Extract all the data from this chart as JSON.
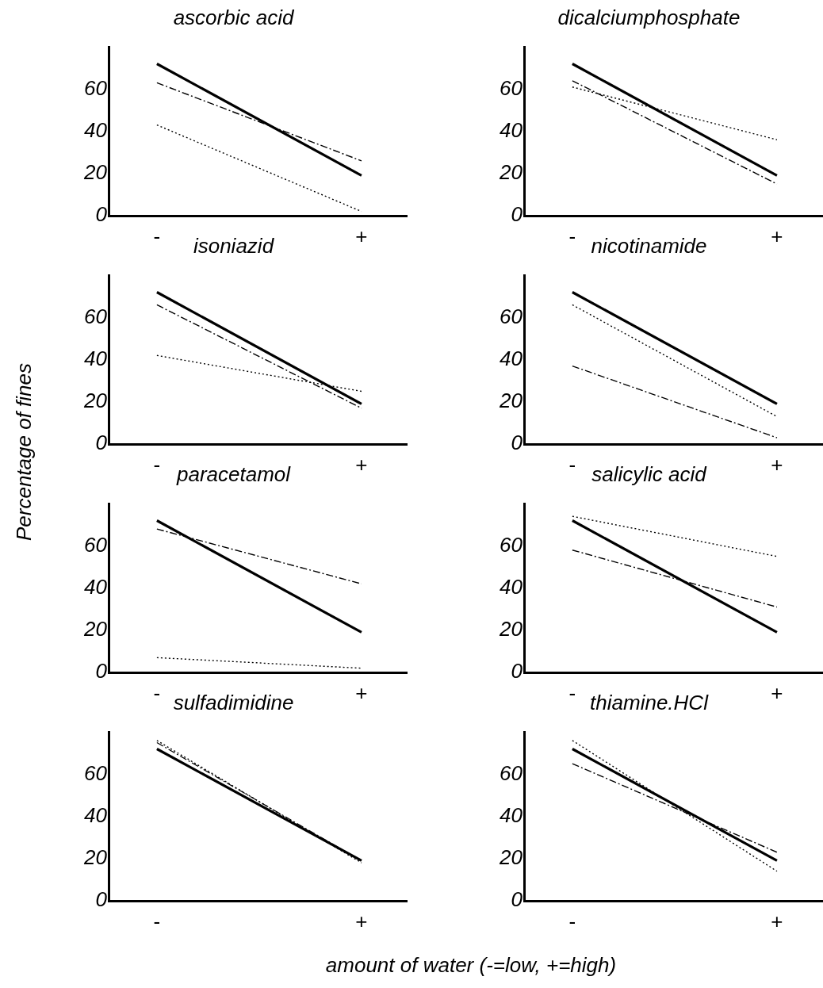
{
  "chart_data": [
    {
      "type": "line",
      "title": "ascorbic acid",
      "categories": [
        "-",
        "+"
      ],
      "ylim": [
        0,
        80
      ],
      "yticks": [
        0,
        20,
        40,
        60
      ],
      "series": [
        {
          "color": "#000000",
          "line_style": "solid",
          "values": [
            72,
            19
          ]
        },
        {
          "color": "#000000",
          "line_style": "dashed",
          "values": [
            63,
            26
          ]
        },
        {
          "color": "#000000",
          "line_style": "dotted",
          "values": [
            43,
            2
          ]
        }
      ]
    },
    {
      "type": "line",
      "title": "dicalciumphosphate",
      "categories": [
        "-",
        "+"
      ],
      "ylim": [
        0,
        80
      ],
      "yticks": [
        0,
        20,
        40,
        60
      ],
      "series": [
        {
          "color": "#000000",
          "line_style": "solid",
          "values": [
            72,
            19
          ]
        },
        {
          "color": "#000000",
          "line_style": "dashed",
          "values": [
            64,
            15
          ]
        },
        {
          "color": "#000000",
          "line_style": "dotted",
          "values": [
            61,
            36
          ]
        }
      ]
    },
    {
      "type": "line",
      "title": "isoniazid",
      "ylabel": "Percentage of fines",
      "categories": [
        "-",
        "+"
      ],
      "ylim": [
        0,
        80
      ],
      "yticks": [
        0,
        20,
        40,
        60
      ],
      "series": [
        {
          "color": "#000000",
          "line_style": "solid",
          "values": [
            72,
            19
          ]
        },
        {
          "color": "#000000",
          "line_style": "dashed",
          "values": [
            66,
            17
          ]
        },
        {
          "color": "#000000",
          "line_style": "dotted",
          "values": [
            42,
            25
          ]
        }
      ]
    },
    {
      "type": "line",
      "title": "nicotinamide",
      "categories": [
        "-",
        "+"
      ],
      "ylim": [
        0,
        80
      ],
      "yticks": [
        0,
        20,
        40,
        60
      ],
      "series": [
        {
          "color": "#000000",
          "line_style": "solid",
          "values": [
            72,
            19
          ]
        },
        {
          "color": "#000000",
          "line_style": "dotted",
          "values": [
            66,
            13
          ]
        },
        {
          "color": "#000000",
          "line_style": "dashed",
          "values": [
            37,
            3
          ]
        }
      ]
    },
    {
      "type": "line",
      "title": "paracetamol",
      "categories": [
        "-",
        "+"
      ],
      "ylim": [
        0,
        80
      ],
      "yticks": [
        0,
        20,
        40,
        60
      ],
      "series": [
        {
          "color": "#000000",
          "line_style": "solid",
          "values": [
            72,
            19
          ]
        },
        {
          "color": "#000000",
          "line_style": "dashed",
          "values": [
            68,
            42
          ]
        },
        {
          "color": "#000000",
          "line_style": "dotted",
          "values": [
            7,
            2
          ]
        }
      ]
    },
    {
      "type": "line",
      "title": "salicylic acid",
      "categories": [
        "-",
        "+"
      ],
      "ylim": [
        0,
        80
      ],
      "yticks": [
        0,
        20,
        40,
        60
      ],
      "series": [
        {
          "color": "#000000",
          "line_style": "solid",
          "values": [
            72,
            19
          ]
        },
        {
          "color": "#000000",
          "line_style": "dotted",
          "values": [
            74,
            55
          ]
        },
        {
          "color": "#000000",
          "line_style": "dashed",
          "values": [
            58,
            31
          ]
        }
      ]
    },
    {
      "type": "line",
      "title": "sulfadimidine",
      "categories": [
        "-",
        "+"
      ],
      "ylim": [
        0,
        80
      ],
      "yticks": [
        0,
        20,
        40,
        60
      ],
      "series": [
        {
          "color": "#000000",
          "line_style": "solid",
          "values": [
            72,
            19
          ]
        },
        {
          "color": "#000000",
          "line_style": "dashed",
          "values": [
            75,
            19
          ]
        },
        {
          "color": "#000000",
          "line_style": "dotted",
          "values": [
            76,
            18
          ]
        }
      ]
    },
    {
      "type": "line",
      "title": "thiamine.HCl",
      "xlabel": "amount of water (-=low, +=high)",
      "categories": [
        "-",
        "+"
      ],
      "ylim": [
        0,
        80
      ],
      "yticks": [
        0,
        20,
        40,
        60
      ],
      "series": [
        {
          "color": "#000000",
          "line_style": "solid",
          "values": [
            72,
            19
          ]
        },
        {
          "color": "#000000",
          "line_style": "dotted",
          "values": [
            76,
            14
          ]
        },
        {
          "color": "#000000",
          "line_style": "dashed",
          "values": [
            65,
            23
          ]
        }
      ]
    }
  ]
}
